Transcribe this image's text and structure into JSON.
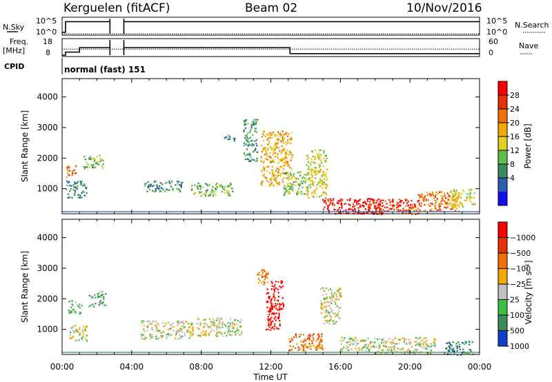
{
  "header": {
    "station": "Kerguelen (fitACF)",
    "beam": "Beam 02",
    "date": "10/Nov/2016"
  },
  "nsky_panel": {
    "left_label": "N.Sky",
    "left_ticks": [
      "10^5",
      "10^0"
    ],
    "right_label": "N.Search",
    "right_ticks": [
      "10^5",
      "10^0"
    ]
  },
  "freq_panel": {
    "left_label_top": "Freq.",
    "left_label_bottom": "[MHz]",
    "left_ticks": [
      "18",
      "8"
    ],
    "right_label": "Nave",
    "right_ticks": [
      "60",
      "0"
    ]
  },
  "cpid_panel": {
    "label": "CPID",
    "mode_text": "normal (fast) 151"
  },
  "colors": {
    "trace": "#000000",
    "frame": "#000000",
    "data_gap": "#ffffff"
  },
  "chart_data": [
    {
      "type": "line",
      "name": "N.Sky / N.Search",
      "x_unit": "hours UT",
      "gaps": [
        [
          2.75,
          3.55
        ]
      ],
      "series": [
        {
          "name": "N.Sky",
          "x": [
            0.0,
            0.2,
            0.2,
            2.75,
            3.55,
            24.0
          ],
          "values": [
            0.5,
            0.5,
            4.0,
            4.0,
            4.0,
            4.0
          ]
        },
        {
          "name": "N.Search",
          "x": [
            0.0,
            24.0
          ],
          "values": [
            0.1,
            0.1
          ]
        }
      ],
      "ylim_log": [
        0,
        5
      ]
    },
    {
      "type": "line",
      "name": "Freq / Nave",
      "x_unit": "hours UT",
      "series": [
        {
          "name": "Freq",
          "x": [
            0.0,
            0.2,
            0.2,
            1.0,
            1.0,
            2.75,
            3.55,
            13.1,
            13.1,
            24.0
          ],
          "values": [
            8,
            8,
            10,
            10,
            13,
            13,
            13,
            13,
            9,
            9
          ]
        },
        {
          "name": "Nave",
          "x": [
            0.0,
            24.0
          ],
          "values": [
            24,
            24
          ]
        }
      ],
      "ylim_freq": [
        8,
        18
      ],
      "ylim_nave": [
        0,
        60
      ]
    },
    {
      "type": "heatmap",
      "title": "",
      "xlabel": "Time UT",
      "ylabel": "Slant Range [km]",
      "x_ticks": [
        "00:00",
        "04:00",
        "08:00",
        "12:00",
        "16:00",
        "20:00",
        "00:00"
      ],
      "y_ticks": [
        1000,
        2000,
        3000,
        4000
      ],
      "ylim": [
        180,
        4600
      ],
      "xlim_hours": [
        0,
        24
      ],
      "colorbar": {
        "label": "Power [dB]",
        "ticks": [
          "4",
          "8",
          "12",
          "16",
          "20",
          "24",
          "28"
        ],
        "colors": [
          "#1010ee",
          "#2b5fb0",
          "#3a8c5a",
          "#5ec04a",
          "#e0d020",
          "#f5a800",
          "#f07000",
          "#e83000",
          "#ff0000"
        ]
      },
      "blobs": [
        {
          "t": 0.5,
          "r": 1600,
          "w": 0.6,
          "h": 200,
          "lvl": 7
        },
        {
          "t": 1.8,
          "r": 1900,
          "w": 1.2,
          "h": 220,
          "lvl": 4
        },
        {
          "t": 0.8,
          "r": 1000,
          "w": 1.2,
          "h": 300,
          "lvl": 3
        },
        {
          "t": 5.8,
          "r": 1100,
          "w": 2.2,
          "h": 180,
          "lvl": 3
        },
        {
          "t": 8.6,
          "r": 1000,
          "w": 2.4,
          "h": 220,
          "lvl": 4
        },
        {
          "t": 9.6,
          "r": 2700,
          "w": 0.6,
          "h": 120,
          "lvl": 3
        },
        {
          "t": 10.8,
          "r": 2600,
          "w": 0.8,
          "h": 700,
          "lvl": 3
        },
        {
          "t": 12.3,
          "r": 2000,
          "w": 1.8,
          "h": 900,
          "lvl": 6
        },
        {
          "t": 13.4,
          "r": 1200,
          "w": 1.4,
          "h": 400,
          "lvl": 4
        },
        {
          "t": 14.6,
          "r": 1500,
          "w": 1.2,
          "h": 800,
          "lvl": 5
        },
        {
          "t": 16.6,
          "r": 450,
          "w": 3.4,
          "h": 260,
          "lvl": 9
        },
        {
          "t": 19.0,
          "r": 430,
          "w": 3.0,
          "h": 260,
          "lvl": 8
        },
        {
          "t": 21.6,
          "r": 600,
          "w": 2.4,
          "h": 320,
          "lvl": 7
        },
        {
          "t": 23.0,
          "r": 700,
          "w": 1.4,
          "h": 300,
          "lvl": 5
        }
      ]
    },
    {
      "type": "heatmap",
      "title": "",
      "xlabel": "Time UT",
      "ylabel": "Slant Range [km]",
      "x_ticks": [
        "00:00",
        "04:00",
        "08:00",
        "12:00",
        "16:00",
        "20:00",
        "00:00"
      ],
      "y_ticks": [
        1000,
        2000,
        3000,
        4000
      ],
      "ylim": [
        180,
        4600
      ],
      "xlim_hours": [
        0,
        24
      ],
      "colorbar": {
        "label": "Velocity [m s⁻¹]",
        "ticks": [
          "1000",
          "500",
          "100",
          "25",
          "−25",
          "−100",
          "−500",
          "−1000"
        ],
        "colors": [
          "#1040c8",
          "#3a8c5a",
          "#40c040",
          "#c0c0c0",
          "#f5a800",
          "#f07000",
          "#e83000",
          "#ff0000"
        ]
      },
      "blobs": [
        {
          "t": 0.7,
          "r": 1750,
          "w": 0.8,
          "h": 220,
          "lvl": 3
        },
        {
          "t": 2.0,
          "r": 2000,
          "w": 1.0,
          "h": 260,
          "lvl": 3
        },
        {
          "t": 0.9,
          "r": 900,
          "w": 1.0,
          "h": 260,
          "lvl": 4
        },
        {
          "t": 6.0,
          "r": 1000,
          "w": 3.0,
          "h": 300,
          "lvl": 4
        },
        {
          "t": 9.0,
          "r": 1100,
          "w": 2.6,
          "h": 300,
          "lvl": 4
        },
        {
          "t": 11.5,
          "r": 2700,
          "w": 0.6,
          "h": 300,
          "lvl": 6
        },
        {
          "t": 12.2,
          "r": 1800,
          "w": 1.0,
          "h": 800,
          "lvl": 8
        },
        {
          "t": 14.0,
          "r": 600,
          "w": 2.0,
          "h": 300,
          "lvl": 6
        },
        {
          "t": 15.4,
          "r": 1800,
          "w": 1.2,
          "h": 600,
          "lvl": 4
        },
        {
          "t": 17.5,
          "r": 500,
          "w": 3.0,
          "h": 260,
          "lvl": 4
        },
        {
          "t": 20.2,
          "r": 500,
          "w": 2.6,
          "h": 260,
          "lvl": 4
        },
        {
          "t": 22.8,
          "r": 400,
          "w": 1.6,
          "h": 220,
          "lvl": 2
        }
      ]
    }
  ]
}
